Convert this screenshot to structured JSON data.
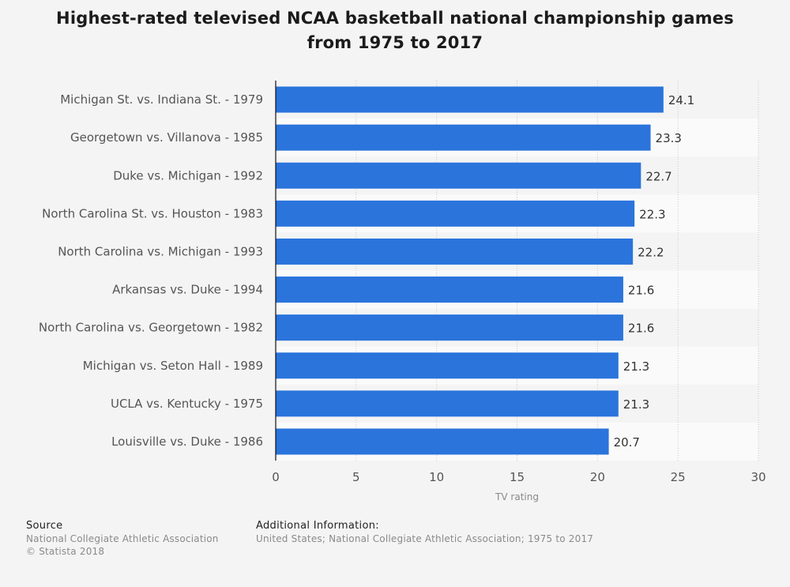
{
  "title": "Highest-rated televised NCAA basketball national championship games from 1975 to 2017",
  "title_lines": [
    "Highest-rated televised NCAA basketball national championship games",
    "from 1975 to 2017"
  ],
  "colors": {
    "bar": "#2a74dc",
    "background": "#f4f4f4",
    "band": "#fafafa"
  },
  "footer": {
    "source_label": "Source",
    "source_lines": [
      "National Collegiate Athletic Association",
      "© Statista 2018"
    ],
    "additional_label": "Additional Information:",
    "additional_text": "United States; National Collegiate Athletic Association; 1975 to 2017"
  },
  "chart_data": {
    "type": "bar",
    "orientation": "horizontal",
    "categories": [
      "Michigan St. vs. Indiana St. - 1979",
      "Georgetown vs. Villanova - 1985",
      "Duke vs. Michigan - 1992",
      "North Carolina St. vs. Houston - 1983",
      "North Carolina vs. Michigan - 1993",
      "Arkansas vs. Duke - 1994",
      "North Carolina vs. Georgetown - 1982",
      "Michigan vs. Seton Hall - 1989",
      "UCLA vs. Kentucky - 1975",
      "Louisville vs. Duke - 1986"
    ],
    "values": [
      24.1,
      23.3,
      22.7,
      22.3,
      22.2,
      21.6,
      21.6,
      21.3,
      21.3,
      20.7
    ],
    "value_labels": [
      "24.1",
      "23.3",
      "22.7",
      "22.3",
      "22.2",
      "21.6",
      "21.6",
      "21.3",
      "21.3",
      "20.7"
    ],
    "xlabel": "TV rating",
    "xlim": [
      0,
      30
    ],
    "xticks": [
      0,
      5,
      10,
      15,
      20,
      25,
      30
    ],
    "grid": true
  }
}
